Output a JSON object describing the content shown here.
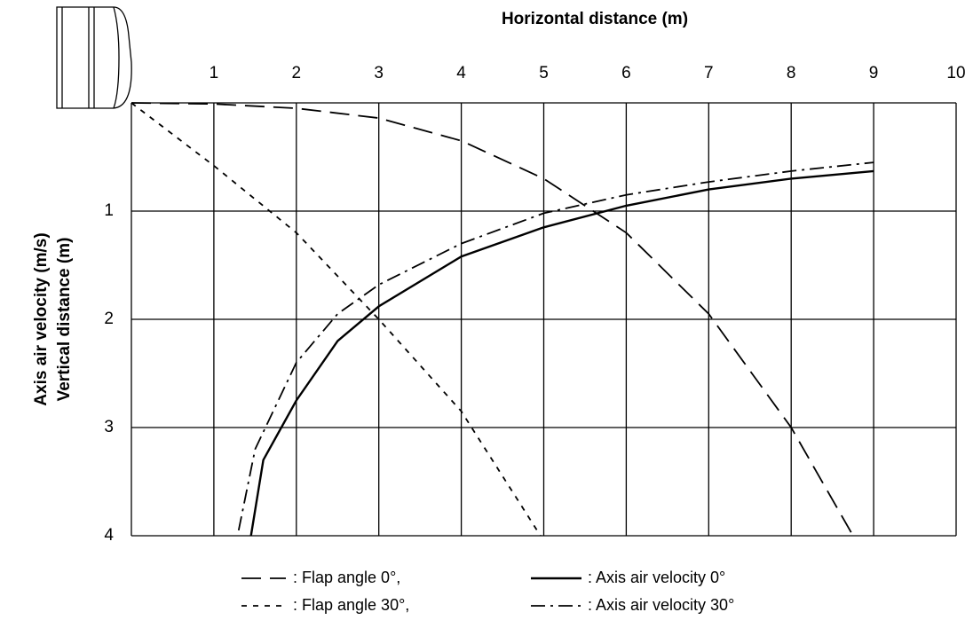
{
  "chart_data": {
    "type": "line",
    "xlabel": "Horizontal distance (m)",
    "ylabel": "Axis air velocity (m/s)",
    "ylabel2": "Vertical distance (m)",
    "xlim": [
      0,
      10
    ],
    "ylim": [
      0,
      4
    ],
    "y_inverted": true,
    "x_axis_position": "top",
    "xticks": [
      1,
      2,
      3,
      4,
      5,
      6,
      7,
      8,
      9,
      10
    ],
    "yticks": [
      1,
      2,
      3,
      4
    ],
    "grid": true,
    "legend": "bottom",
    "series": [
      {
        "name": ": Flap angle 0°,",
        "color": "#000000",
        "dash": "dashed",
        "x": [
          0,
          1,
          2,
          3,
          4,
          5,
          6,
          7,
          8,
          8.75
        ],
        "values": [
          0,
          0.01,
          0.05,
          0.14,
          0.35,
          0.7,
          1.2,
          1.95,
          3.0,
          4.0
        ]
      },
      {
        "name": ": Axis air velocity 0°",
        "color": "#000000",
        "dash": "solid",
        "x": [
          1.45,
          1.6,
          2,
          2.5,
          3,
          4,
          5,
          6,
          7,
          8,
          9
        ],
        "values": [
          4.0,
          3.3,
          2.75,
          2.2,
          1.88,
          1.42,
          1.15,
          0.95,
          0.8,
          0.7,
          0.63
        ]
      },
      {
        "name": ": Flap angle 30°,",
        "color": "#000000",
        "dash": "dotted",
        "x": [
          0,
          1,
          2,
          3,
          4,
          4.96
        ],
        "values": [
          0,
          0.58,
          1.2,
          2.0,
          2.85,
          4.0
        ]
      },
      {
        "name": ": Axis air velocity 30°",
        "color": "#000000",
        "dash": "dashdot",
        "x": [
          1.3,
          1.5,
          2,
          2.5,
          3,
          4,
          5,
          6,
          7,
          8,
          9
        ],
        "values": [
          3.95,
          3.2,
          2.4,
          1.95,
          1.68,
          1.3,
          1.02,
          0.85,
          0.73,
          0.63,
          0.55
        ]
      }
    ]
  }
}
